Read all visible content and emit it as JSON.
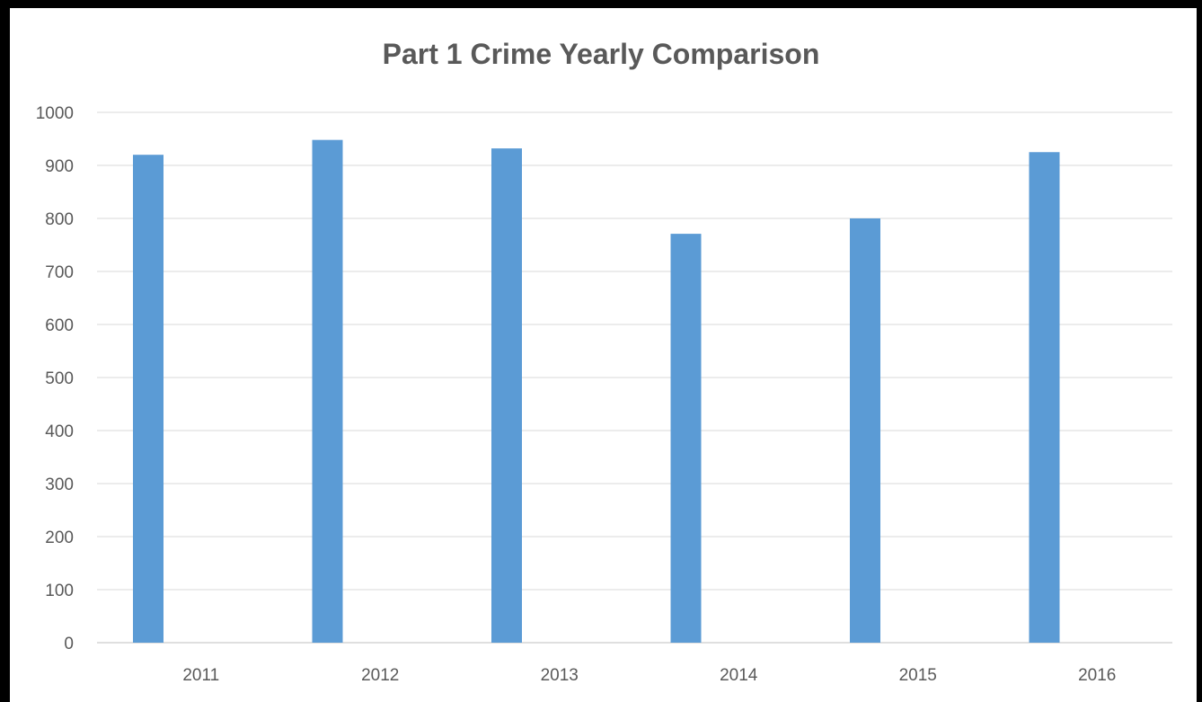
{
  "chart_data": {
    "type": "bar",
    "title": "Part 1 Crime Yearly Comparison",
    "xlabel": "",
    "ylabel": "",
    "categories": [
      "2011",
      "2012",
      "2013",
      "2014",
      "2015",
      "2016"
    ],
    "values": [
      920,
      948,
      932,
      771,
      800,
      925
    ],
    "ylim": [
      0,
      1000
    ],
    "yticks": [
      0,
      100,
      200,
      300,
      400,
      500,
      600,
      700,
      800,
      900,
      1000
    ],
    "grid": true,
    "legend": "none",
    "bar_color": "#5B9BD5",
    "grid_color": "#D9D9D9"
  }
}
